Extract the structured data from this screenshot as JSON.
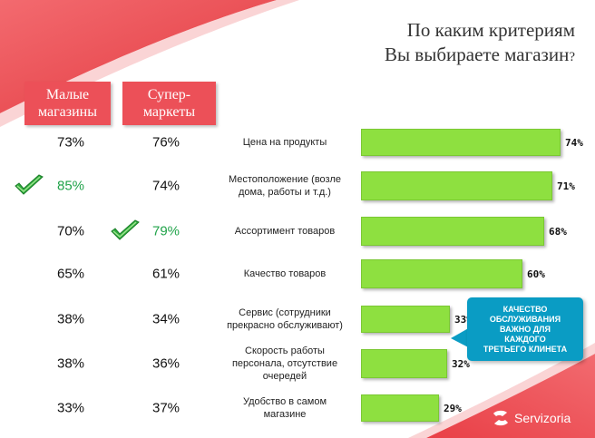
{
  "title_line1": "По каким критериям",
  "title_line2": "Вы выбираете магазин",
  "title_mark": "?",
  "headers": {
    "small": "Малые\nмагазины",
    "super": "Супер-\nмаркеты"
  },
  "brand": "Servizoria",
  "callout": "КАЧЕСТВО\nОБСЛУЖИВАНИЯ\nВАЖНО ДЛЯ\nКАЖДОГО\nТРЕТЬЕГО КЛИНЕТА",
  "colors": {
    "accent": "#ec5058",
    "bar": "#8ee040",
    "highlight": "#21a34a",
    "callout": "#0a9cc4"
  },
  "chart_data": {
    "type": "bar",
    "orientation": "horizontal",
    "categories": [
      "Цена на продукты",
      "Местоположение  (возле\nдома, работы и т.д.)",
      "Ассортимент товаров",
      "Качество товаров",
      "Сервис (сотрудники\nпрекрасно обслуживают)",
      "Скорость  работы\nперсонала, отсутствие\nочередей",
      "Удобство в самом\nмагазине"
    ],
    "values": [
      74,
      71,
      68,
      60,
      33,
      32,
      29
    ],
    "value_labels": [
      "74%",
      "71%",
      "68%",
      "60%",
      "33%",
      "32%",
      "29%"
    ],
    "small_shops": [
      "73%",
      "85%",
      "70%",
      "65%",
      "38%",
      "38%",
      "33%"
    ],
    "supermarkets": [
      "76%",
      "74%",
      "79%",
      "61%",
      "34%",
      "36%",
      "37%"
    ],
    "checkmarks": {
      "small_shops_row": 1,
      "supermarkets_row": 2
    },
    "xlim": [
      0,
      100
    ]
  }
}
